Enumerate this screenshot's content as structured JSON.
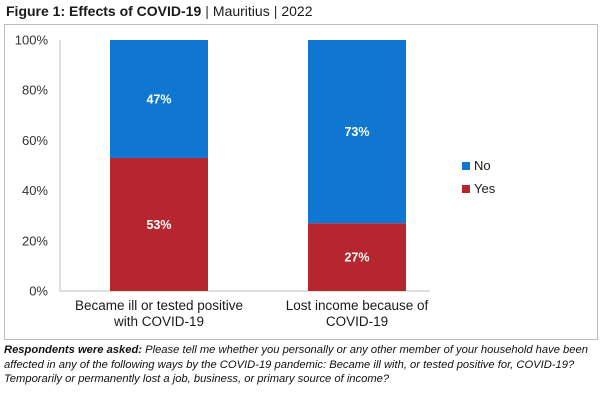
{
  "header": {
    "title_bold": "Figure 1: Effects of COVID-19",
    "sep1": "|",
    "country": "Mauritius",
    "sep2": "|",
    "year": "2022"
  },
  "note": {
    "lead": "Respondents were asked:",
    "text": "Please tell me whether you personally or any other member of your household have been affected in any of the following ways by the COVID-19 pandemic: Became ill with, or tested positive for, COVID-19? Temporarily or permanently lost a job, business, or primary source of income?"
  },
  "chart_data": {
    "type": "bar",
    "stacked": true,
    "categories": [
      [
        "Became ill or tested positive",
        "with COVID-19"
      ],
      [
        "Lost income because of",
        "COVID-19"
      ]
    ],
    "series": [
      {
        "name": "Yes",
        "values": [
          53,
          27
        ],
        "labels": [
          "53%",
          "27%"
        ],
        "color": "#b5262e"
      },
      {
        "name": "No",
        "values": [
          47,
          73
        ],
        "labels": [
          "47%",
          "73%"
        ],
        "color": "#0f76d1"
      }
    ],
    "ylim": [
      0,
      100
    ],
    "yticks": [
      "0%",
      "20%",
      "40%",
      "60%",
      "80%",
      "100%"
    ],
    "grid": false,
    "legend": {
      "position": "right",
      "order": [
        "No",
        "Yes"
      ]
    }
  }
}
